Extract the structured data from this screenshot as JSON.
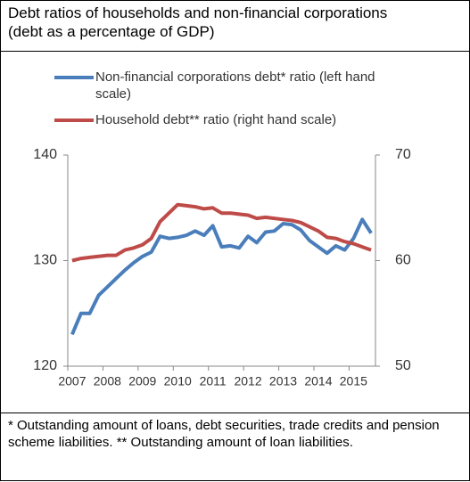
{
  "chart_data": {
    "type": "line",
    "title": "Debt ratios of households and non-financial corporations",
    "subtitle": "(debt as a percentage of GDP)",
    "categories": [
      "2007",
      null,
      null,
      null,
      "2008",
      null,
      null,
      null,
      "2009",
      null,
      null,
      null,
      "2010",
      null,
      null,
      null,
      "2011",
      null,
      null,
      null,
      "2012",
      null,
      null,
      null,
      "2013",
      null,
      null,
      null,
      "2014",
      null,
      null,
      null,
      "2015",
      null,
      null
    ],
    "series": [
      {
        "name": "Non-financial corporations debt* ratio (left hand scale)",
        "color": "#4a7ebb",
        "axis": "y",
        "values": [
          123,
          125,
          125,
          126.7,
          127.5,
          128.3,
          129.1,
          129.8,
          130.4,
          130.8,
          132.3,
          132.1,
          132.2,
          132.4,
          132.8,
          132.4,
          133.3,
          131.3,
          131.4,
          131.2,
          132.3,
          131.7,
          132.7,
          132.8,
          133.5,
          133.4,
          132.9,
          131.9,
          131.3,
          130.7,
          131.4,
          131,
          132.1,
          133.9,
          132.6
        ]
      },
      {
        "name": "Household debt** ratio (right hand scale)",
        "color": "#be4b48",
        "axis": "y2",
        "values": [
          60,
          60.2,
          60.3,
          60.4,
          60.5,
          60.5,
          61,
          61.2,
          61.5,
          62.1,
          63.7,
          64.5,
          65.3,
          65.2,
          65.1,
          64.9,
          65,
          64.5,
          64.5,
          64.4,
          64.3,
          64,
          64.1,
          64,
          63.9,
          63.8,
          63.6,
          63.2,
          62.8,
          62.2,
          62.1,
          61.8,
          61.6,
          61.3,
          61
        ]
      }
    ],
    "ylim": [
      120,
      140
    ],
    "yticks": [
      120,
      130,
      140
    ],
    "y2lim": [
      50,
      70
    ],
    "y2ticks": [
      50,
      60,
      70
    ],
    "grid": false,
    "legend": "top",
    "footnote": "* Outstanding amount of loans, debt securities, trade credits and pension scheme liabilities. ** Outstanding amount of loan liabilities."
  }
}
